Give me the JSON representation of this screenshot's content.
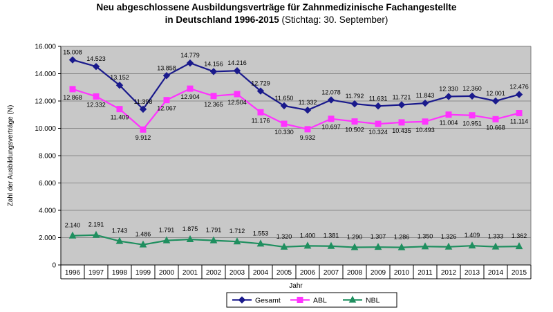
{
  "title": {
    "line1": "Neu abgeschlossene Ausbildungsverträge für Zahnmedizinische Fachangestellte",
    "line2_bold": "in Deutschland 1996-2015",
    "line2_normal": " (Stichtag: 30. September)"
  },
  "colors": {
    "gesamt": "#1a1a8c",
    "abl": "#ff33ff",
    "nbl": "#1f8f5f",
    "plot_bg": "#c8c8c8",
    "grid": "#8a8a8a"
  },
  "chart_data": {
    "type": "line",
    "x": [
      "1996",
      "1997",
      "1998",
      "1999",
      "2000",
      "2001",
      "2002",
      "2003",
      "2004",
      "2005",
      "2006",
      "2007",
      "2008",
      "2009",
      "2010",
      "2011",
      "2012",
      "2013",
      "2014",
      "2015"
    ],
    "xlabel": "Jahr",
    "ylabel": "Zahl der Ausbildungsverträge (N)",
    "ylim": [
      0,
      16000
    ],
    "yticks": [
      0,
      2000,
      4000,
      6000,
      8000,
      10000,
      12000,
      14000,
      16000
    ],
    "ytick_labels": [
      "0",
      "2.000",
      "4.000",
      "6.000",
      "8.000",
      "10.000",
      "12.000",
      "14.000",
      "16.000"
    ],
    "grid": true,
    "legend_position": "bottom",
    "series": [
      {
        "name": "Gesamt",
        "marker": "diamond",
        "values": [
          15008,
          14523,
          13152,
          11398,
          13858,
          14779,
          14156,
          14216,
          12729,
          11650,
          11332,
          12078,
          11792,
          11631,
          11721,
          11843,
          12330,
          12360,
          12001,
          12476
        ],
        "labels": [
          "15.008",
          "14.523",
          "13.152",
          "11.398",
          "13.858",
          "14.779",
          "14.156",
          "14.216",
          "12.729",
          "11.650",
          "11.332",
          "12.078",
          "11.792",
          "11.631",
          "11.721",
          "11.843",
          "12.330",
          "12.360",
          "12.001",
          "12.476"
        ]
      },
      {
        "name": "ABL",
        "marker": "square",
        "values": [
          12868,
          12332,
          11409,
          9912,
          12067,
          12904,
          12365,
          12504,
          11176,
          10330,
          9932,
          10697,
          10502,
          10324,
          10435,
          10493,
          11004,
          10951,
          10668,
          11114
        ],
        "labels": [
          "12.868",
          "12.332",
          "11.409",
          "9.912",
          "12.067",
          "12.904",
          "12.365",
          "12.504",
          "11.176",
          "10.330",
          "9.932",
          "10.697",
          "10.502",
          "10.324",
          "10.435",
          "10.493",
          "11.004",
          "10.951",
          "10.668",
          "11.114"
        ]
      },
      {
        "name": "NBL",
        "marker": "triangle",
        "values": [
          2140,
          2191,
          1743,
          1486,
          1791,
          1875,
          1791,
          1712,
          1553,
          1320,
          1400,
          1381,
          1290,
          1307,
          1286,
          1350,
          1326,
          1409,
          1333,
          1362
        ],
        "labels": [
          "2.140",
          "2.191",
          "1.743",
          "1.486",
          "1.791",
          "1.875",
          "1.791",
          "1.712",
          "1.553",
          "1.320",
          "1.400",
          "1.381",
          "1.290",
          "1.307",
          "1.286",
          "1.350",
          "1.326",
          "1.409",
          "1.333",
          "1.362"
        ]
      }
    ]
  }
}
